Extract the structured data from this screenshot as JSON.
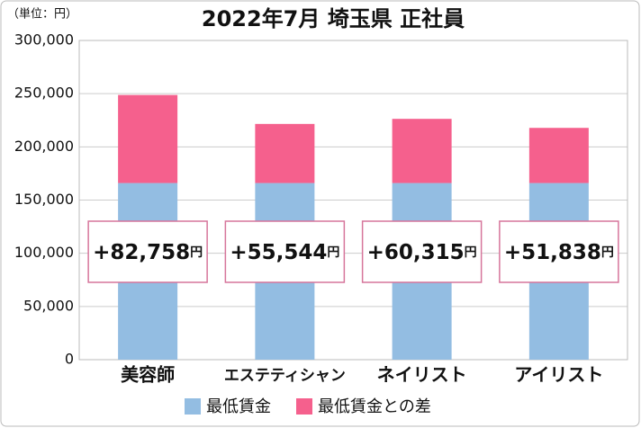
{
  "chart_data": {
    "type": "stacked_bar",
    "title": "2022年7月 埼玉県 正社員",
    "unit_label": "（単位：円）",
    "categories": [
      "美容師",
      "エステティシャン",
      "ネイリスト",
      "アイリスト"
    ],
    "series": [
      {
        "name": "最低賃金",
        "color": "#93bde2",
        "values": [
          166000,
          166000,
          166000,
          166000
        ]
      },
      {
        "name": "最低賃金との差",
        "color": "#f5608d",
        "values": [
          82758,
          55544,
          60315,
          51838
        ],
        "value_labels": [
          "+82,758円",
          "+55,544円",
          "+60,315円",
          "+51,838円"
        ]
      }
    ],
    "ylim": [
      0,
      300000
    ],
    "yticks": [
      0,
      {
        "value": 50000,
        "label": "50,000"
      },
      {
        "value": 100000,
        "label": "100,000"
      },
      {
        "value": 150000,
        "label": "150,000"
      },
      {
        "value": 200000,
        "label": "200,000"
      },
      {
        "value": 250000,
        "label": "250,000"
      },
      {
        "value": 300000,
        "label": "300,000"
      }
    ],
    "grid": true
  }
}
